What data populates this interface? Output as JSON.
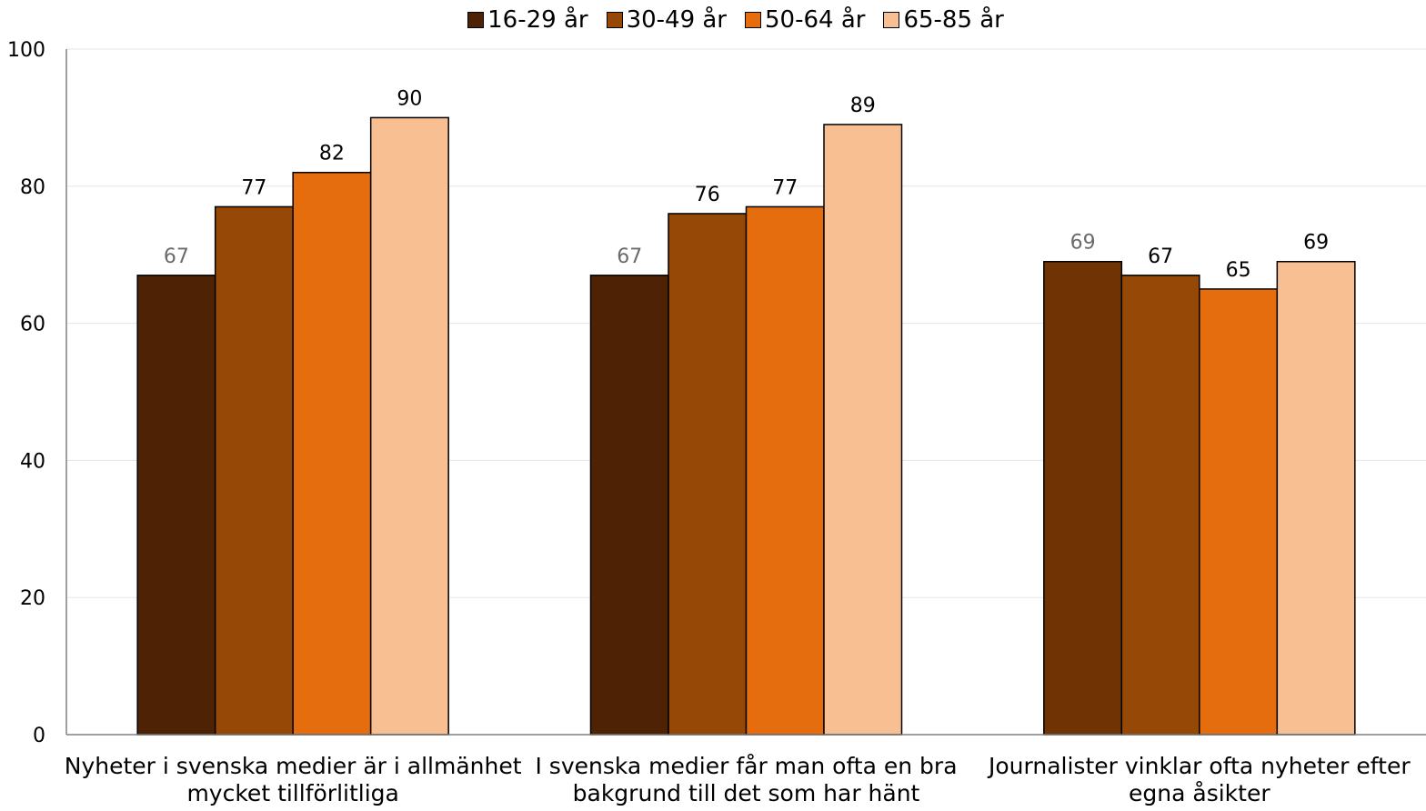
{
  "chart_data": {
    "type": "bar",
    "categories": [
      [
        "Nyheter i svenska medier är i allmänhet",
        "mycket tillförlitliga"
      ],
      [
        "I svenska medier får man ofta en bra",
        "bakgrund till det som har hänt"
      ],
      [
        "Journalister vinklar ofta nyheter efter",
        "egna åsikter"
      ]
    ],
    "series": [
      {
        "name": "16-29 år",
        "values": [
          67,
          67,
          69
        ],
        "colors": [
          "#4e2305",
          "#4e2305",
          "#6f3304"
        ]
      },
      {
        "name": "30-49 år",
        "values": [
          77,
          76,
          67
        ],
        "color": "#964806"
      },
      {
        "name": "50-64 år",
        "values": [
          82,
          77,
          65
        ],
        "color": "#e56d0d"
      },
      {
        "name": "65-85 år",
        "values": [
          90,
          89,
          69
        ],
        "color": "#f8c092"
      }
    ],
    "value_label_colors": [
      "#6b6b6b",
      "#000000",
      "#000000",
      "#000000"
    ],
    "ylim": [
      0,
      100
    ],
    "yticks": [
      0,
      20,
      40,
      60,
      80,
      100
    ],
    "grid": true,
    "legend_position": "top",
    "title": "",
    "xlabel": "",
    "ylabel": ""
  }
}
